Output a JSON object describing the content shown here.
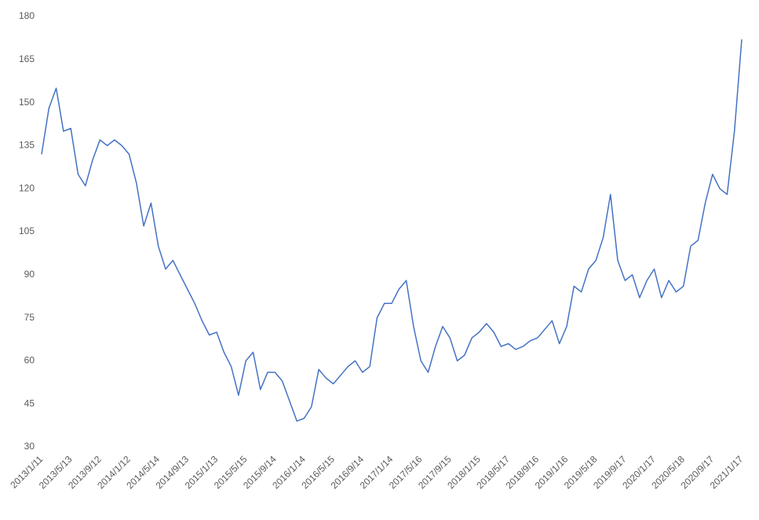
{
  "chart_data": {
    "type": "line",
    "categories": [
      "2013/1/11",
      null,
      null,
      null,
      "2013/5/13",
      null,
      null,
      null,
      "2013/9/12",
      null,
      null,
      null,
      "2014/1/12",
      null,
      null,
      null,
      "2014/5/14",
      null,
      null,
      null,
      "2014/9/13",
      null,
      null,
      null,
      "2015/1/13",
      null,
      null,
      null,
      "2015/5/15",
      null,
      null,
      null,
      "2015/9/14",
      null,
      null,
      null,
      "2016/1/14",
      null,
      null,
      null,
      "2016/5/15",
      null,
      null,
      null,
      "2016/9/14",
      null,
      null,
      null,
      "2017/1/14",
      null,
      null,
      null,
      "2017/5/16",
      null,
      null,
      null,
      "2017/9/15",
      null,
      null,
      null,
      "2018/1/15",
      null,
      null,
      null,
      "2018/5/17",
      null,
      null,
      null,
      "2018/9/16",
      null,
      null,
      null,
      "2019/1/16",
      null,
      null,
      null,
      "2019/5/18",
      null,
      null,
      null,
      "2019/9/17",
      null,
      null,
      null,
      "2020/1/17",
      null,
      null,
      null,
      "2020/5/18",
      null,
      null,
      null,
      "2020/9/17",
      null,
      null,
      null,
      "2021/1/17"
    ],
    "values": [
      132,
      148,
      155,
      140,
      141,
      125,
      121,
      130,
      137,
      135,
      137,
      135,
      132,
      122,
      107,
      115,
      100,
      92,
      95,
      90,
      85,
      80,
      74,
      69,
      70,
      63,
      58,
      48,
      60,
      63,
      50,
      56,
      56,
      53,
      46,
      39,
      40,
      44,
      57,
      54,
      52,
      55,
      58,
      60,
      56,
      58,
      75,
      80,
      80,
      85,
      88,
      72,
      60,
      56,
      65,
      72,
      68,
      60,
      62,
      68,
      70,
      73,
      70,
      65,
      66,
      64,
      65,
      67,
      68,
      71,
      74,
      66,
      72,
      86,
      84,
      92,
      95,
      103,
      118,
      95,
      88,
      90,
      82,
      88,
      92,
      82,
      88,
      84,
      86,
      100,
      102,
      115,
      125,
      120,
      118,
      140,
      172
    ],
    "color": "#4472c4",
    "ylim": [
      30,
      180
    ],
    "yticks": [
      30,
      45,
      60,
      75,
      90,
      105,
      120,
      135,
      150,
      165,
      180
    ]
  }
}
